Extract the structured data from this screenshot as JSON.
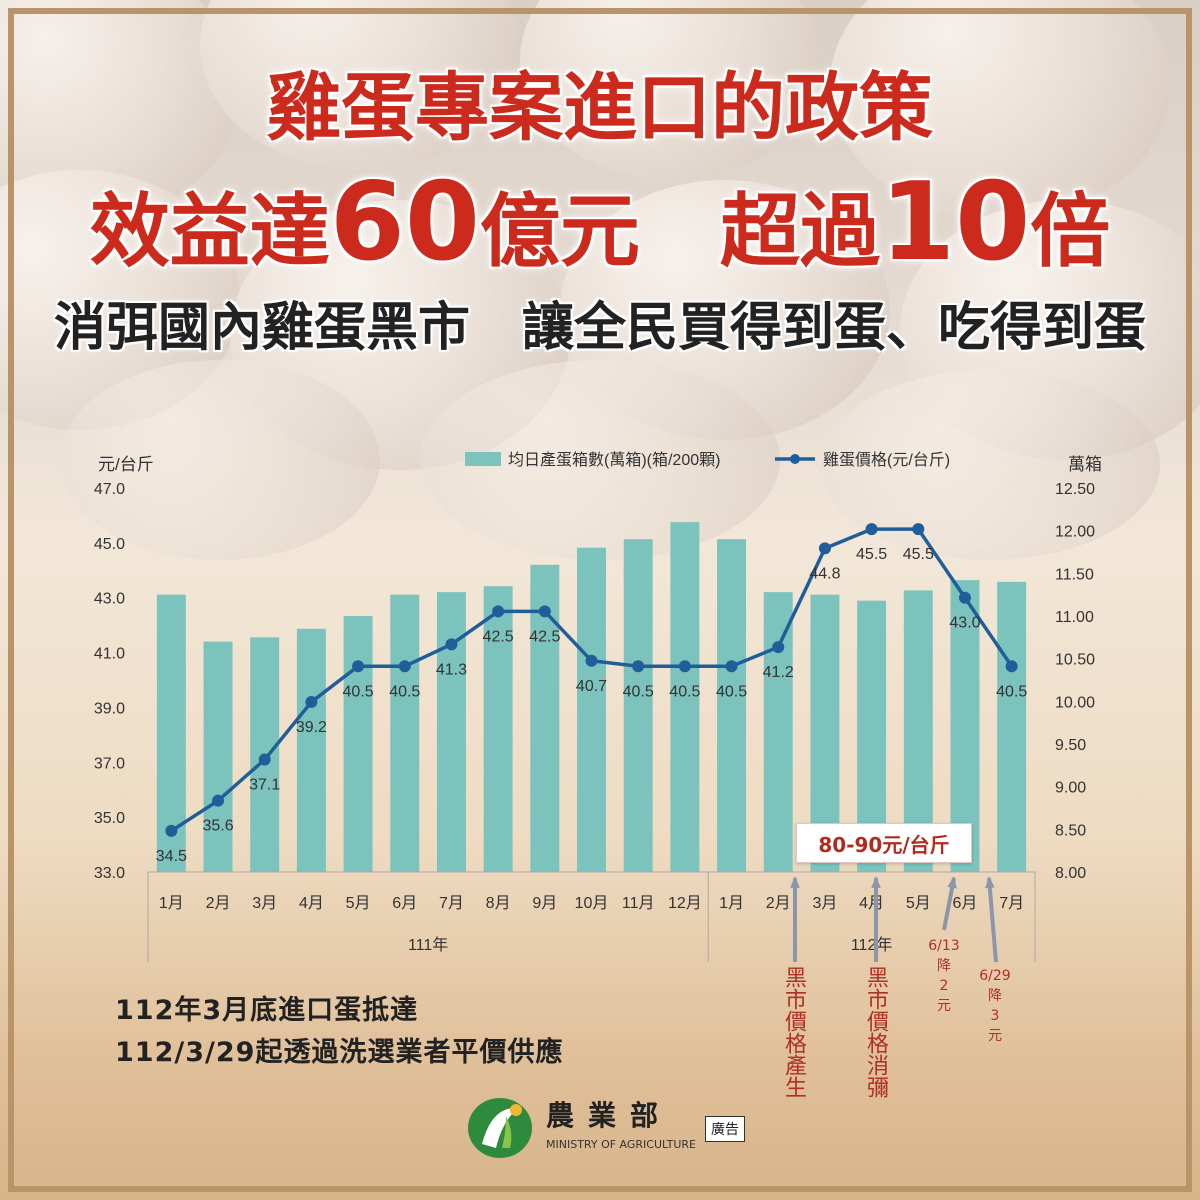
{
  "headline": {
    "line1": "雞蛋專案進口的政策",
    "line2_a": "效益達",
    "line2_b": "60",
    "line2_c": "億元　超過",
    "line2_d": "10",
    "line2_e": "倍",
    "line3": "消弭國內雞蛋黑市　讓全民買得到蛋、吃得到蛋"
  },
  "chart_data": {
    "type": "bar+line",
    "categories": [
      "1月",
      "2月",
      "3月",
      "4月",
      "5月",
      "6月",
      "7月",
      "8月",
      "9月",
      "10月",
      "11月",
      "12月",
      "1月",
      "2月",
      "3月",
      "4月",
      "5月",
      "6月",
      "7月"
    ],
    "year_groups": [
      {
        "label": "111年",
        "start": 0,
        "end": 11
      },
      {
        "label": "112年",
        "start": 12,
        "end": 18
      }
    ],
    "left_axis": {
      "unit": "元/台斤",
      "range": [
        33.0,
        47.0
      ],
      "ticks": [
        "33.0",
        "35.0",
        "37.0",
        "39.0",
        "41.0",
        "43.0",
        "45.0",
        "47.0"
      ]
    },
    "right_axis": {
      "unit": "萬箱",
      "range": [
        8.0,
        12.5
      ],
      "ticks": [
        "8.00",
        "8.50",
        "9.00",
        "9.50",
        "10.00",
        "10.50",
        "11.00",
        "11.50",
        "12.00",
        "12.50"
      ]
    },
    "series": [
      {
        "name": "均日產蛋箱數(萬箱)(箱/200顆)",
        "kind": "bar",
        "axis": "right",
        "color": "#7cc3be",
        "values": [
          11.25,
          10.7,
          10.75,
          10.85,
          11.0,
          11.25,
          11.28,
          11.35,
          11.6,
          11.8,
          11.9,
          12.1,
          11.9,
          11.28,
          11.25,
          11.18,
          11.3,
          11.42,
          11.4
        ]
      },
      {
        "name": "雞蛋價格(元/台斤)",
        "kind": "line",
        "axis": "left",
        "color": "#1f5e99",
        "values": [
          34.5,
          35.6,
          37.1,
          39.2,
          40.5,
          40.5,
          41.3,
          42.5,
          42.5,
          40.7,
          40.5,
          40.5,
          40.5,
          41.2,
          44.8,
          45.5,
          45.5,
          43.0,
          40.5
        ],
        "labels": [
          "34.5",
          "35.6",
          "37.1",
          "39.2",
          "40.5",
          "40.5",
          "41.3",
          "42.5",
          "42.5",
          "40.7",
          "40.5",
          "40.5",
          "40.5",
          "41.2",
          "44.8",
          "45.5",
          "45.5",
          "43.0",
          "40.5"
        ]
      }
    ],
    "legend_position": "top",
    "grid": false
  },
  "price_box": "80-90元/台斤",
  "annotations": {
    "black_market_start": "黑市價格產生",
    "black_market_end": "黑市價格消彌",
    "drop1": [
      "6/13",
      "降",
      "2",
      "元"
    ],
    "drop2": [
      "6/29",
      "降",
      "3",
      "元"
    ]
  },
  "notes": {
    "line1": "112年3月底進口蛋抵達",
    "line2": "112/3/29起透過洗選業者平價供應"
  },
  "logo": {
    "name": "農業部",
    "english": "MINISTRY OF AGRICULTURE",
    "ad": "廣告"
  },
  "colors": {
    "headline_red": "#cc2a1c",
    "bar": "#7cc3be",
    "line": "#1f5e99",
    "annotation_red": "#b03024",
    "arrow": "#8a97ab"
  }
}
